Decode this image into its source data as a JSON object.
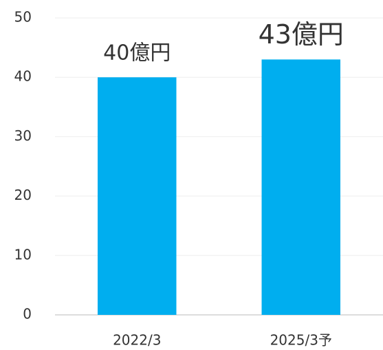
{
  "chart_data": {
    "type": "bar",
    "categories": [
      "2022/3",
      "2025/3予"
    ],
    "values": [
      40,
      43
    ],
    "value_labels": [
      "40億円",
      "43億円"
    ],
    "color": "#00aeef",
    "ylim": [
      0,
      50
    ],
    "yticks": [
      0,
      10,
      20,
      30,
      40,
      50
    ],
    "grid": true
  }
}
